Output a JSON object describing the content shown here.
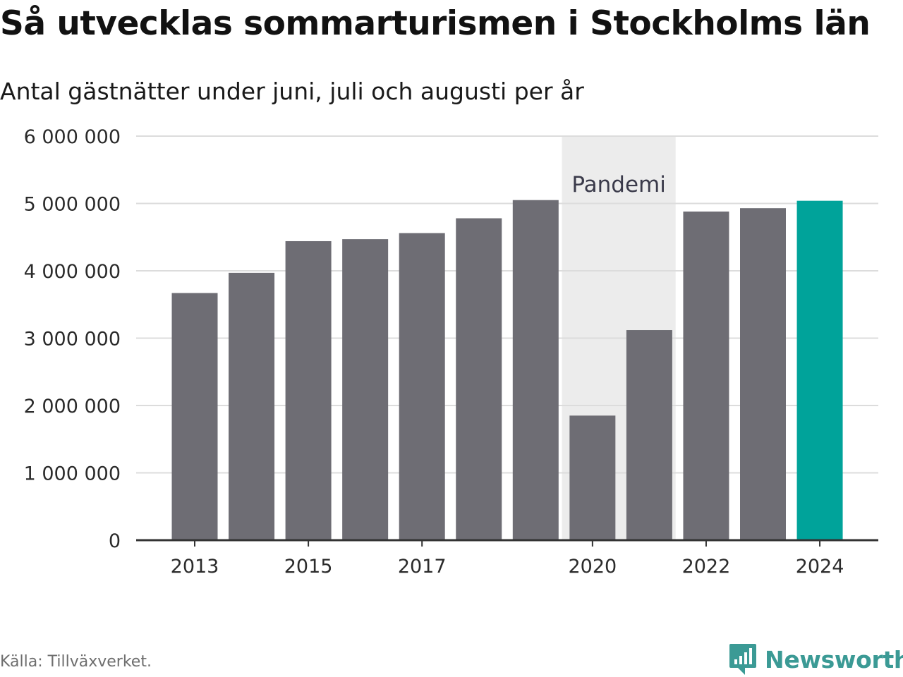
{
  "title": "Så utvecklas sommarturismen i Stockholms län",
  "subtitle": "Antal gästnätter under juni, juli och augusti per år",
  "source": "Källa: Tillväxverket.",
  "brand": {
    "name": "Newsworthy",
    "color": "#3b9a95",
    "icon": "newsworthy-logo-icon"
  },
  "colors": {
    "bar": "#6e6d74",
    "highlight": "#00a39a",
    "shade": "#ececec",
    "grid": "#dcdcdc",
    "axis": "#333333",
    "text": "#2b2b2b",
    "annotation": "#3a3a4a"
  },
  "chart_data": {
    "type": "bar",
    "title": "Så utvecklas sommarturismen i Stockholms län",
    "subtitle": "Antal gästnätter under juni, juli och augusti per år",
    "categories": [
      "2013",
      "2014",
      "2015",
      "2016",
      "2017",
      "2018",
      "2019",
      "2020",
      "2021",
      "2022",
      "2023",
      "2024"
    ],
    "values": [
      3670000,
      3970000,
      4440000,
      4470000,
      4560000,
      4780000,
      5050000,
      1850000,
      3120000,
      4880000,
      4930000,
      5040000
    ],
    "highlight_category": "2024",
    "xticks": [
      "2013",
      "2015",
      "2017",
      "2020",
      "2022",
      "2024"
    ],
    "ylim": [
      0,
      6000000
    ],
    "yticks": [
      0,
      1000000,
      2000000,
      3000000,
      4000000,
      5000000,
      6000000
    ],
    "ytick_labels": [
      "0",
      "1 000 000",
      "2 000 000",
      "3 000 000",
      "4 000 000",
      "5 000 000",
      "6 000 000"
    ],
    "grid": true,
    "legend": "none",
    "annotations": [
      {
        "label": "Pandemi",
        "from": "2019",
        "to": "2021",
        "type": "shaded-range"
      }
    ],
    "source": "Källa: Tillväxverket."
  }
}
